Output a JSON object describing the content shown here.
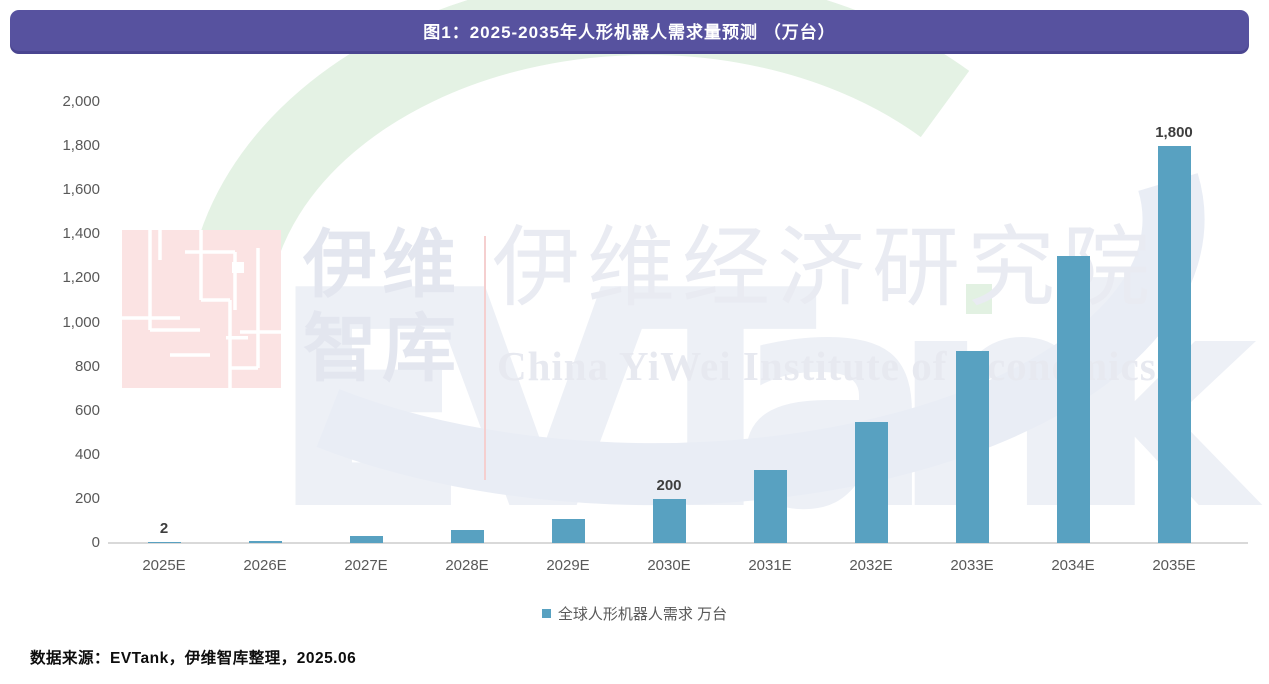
{
  "header": {
    "title": "图1：2025-2035年人形机器人需求量预测 （万台）",
    "bg_color": "#57529f"
  },
  "chart_data": {
    "type": "bar",
    "title": "图1：2025-2035年人形机器人需求量预测 （万台）",
    "categories": [
      "2025E",
      "2026E",
      "2027E",
      "2028E",
      "2029E",
      "2030E",
      "2031E",
      "2032E",
      "2033E",
      "2034E",
      "2035E"
    ],
    "values": [
      2,
      10,
      30,
      60,
      110,
      200,
      330,
      550,
      870,
      1300,
      1800
    ],
    "value_labels": [
      "2",
      "",
      "",
      "",
      "",
      "200",
      "",
      "",
      "",
      "",
      "1,800"
    ],
    "xlabel": "",
    "ylabel": "",
    "ylim": [
      0,
      2000
    ],
    "ytick_step": 200,
    "yticks": [
      "0",
      "200",
      "400",
      "600",
      "800",
      "1,000",
      "1,200",
      "1,400",
      "1,600",
      "1,800",
      "2,000"
    ],
    "grid": false,
    "bar_color": "#58a1c1",
    "legend": {
      "label": "全球人形机器人需求 万台",
      "position": "bottom",
      "marker_color": "#58a1c1"
    }
  },
  "watermark": {
    "big_text": "EVTank",
    "logo_line1": "伊维",
    "logo_line2": "智库",
    "cn_text": "伊维经济研究院",
    "en_text": "China YiWei Institute of Economics",
    "colors": {
      "green_arc": "#e4f2e4",
      "blue_swoosh": "#e9edf5",
      "pink_square": "#fbe3e3",
      "gray_text": "#e9ebf2"
    }
  },
  "footer": {
    "source": "数据来源：EVTank，伊维智库整理，2025.06"
  }
}
